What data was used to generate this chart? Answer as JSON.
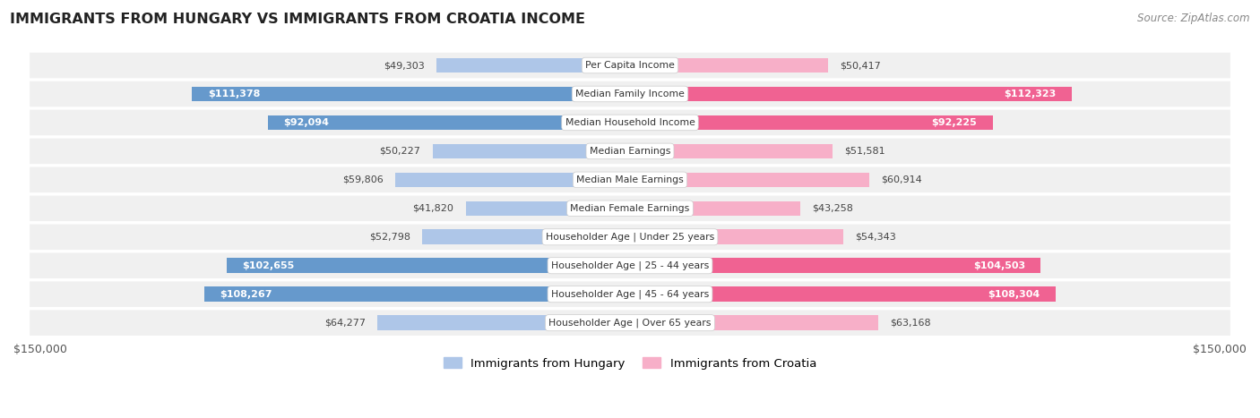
{
  "title": "IMMIGRANTS FROM HUNGARY VS IMMIGRANTS FROM CROATIA INCOME",
  "source": "Source: ZipAtlas.com",
  "categories": [
    "Per Capita Income",
    "Median Family Income",
    "Median Household Income",
    "Median Earnings",
    "Median Male Earnings",
    "Median Female Earnings",
    "Householder Age | Under 25 years",
    "Householder Age | 25 - 44 years",
    "Householder Age | 45 - 64 years",
    "Householder Age | Over 65 years"
  ],
  "hungary_values": [
    49303,
    111378,
    92094,
    50227,
    59806,
    41820,
    52798,
    102655,
    108267,
    64277
  ],
  "croatia_values": [
    50417,
    112323,
    92225,
    51581,
    60914,
    43258,
    54343,
    104503,
    108304,
    63168
  ],
  "hungary_labels": [
    "$49,303",
    "$111,378",
    "$92,094",
    "$50,227",
    "$59,806",
    "$41,820",
    "$52,798",
    "$102,655",
    "$108,267",
    "$64,277"
  ],
  "croatia_labels": [
    "$50,417",
    "$112,323",
    "$92,225",
    "$51,581",
    "$60,914",
    "$43,258",
    "$54,343",
    "$104,503",
    "$108,304",
    "$63,168"
  ],
  "max_value": 150000,
  "hungary_color_light": "#aec6e8",
  "hungary_color_dark": "#6699cc",
  "croatia_color_light": "#f7afc8",
  "croatia_color_dark": "#f06292",
  "bar_height": 0.52,
  "row_bg_color": "#f0f0f0",
  "label_inside_threshold": 80000,
  "legend_hungary": "Immigrants from Hungary",
  "legend_croatia": "Immigrants from Croatia"
}
